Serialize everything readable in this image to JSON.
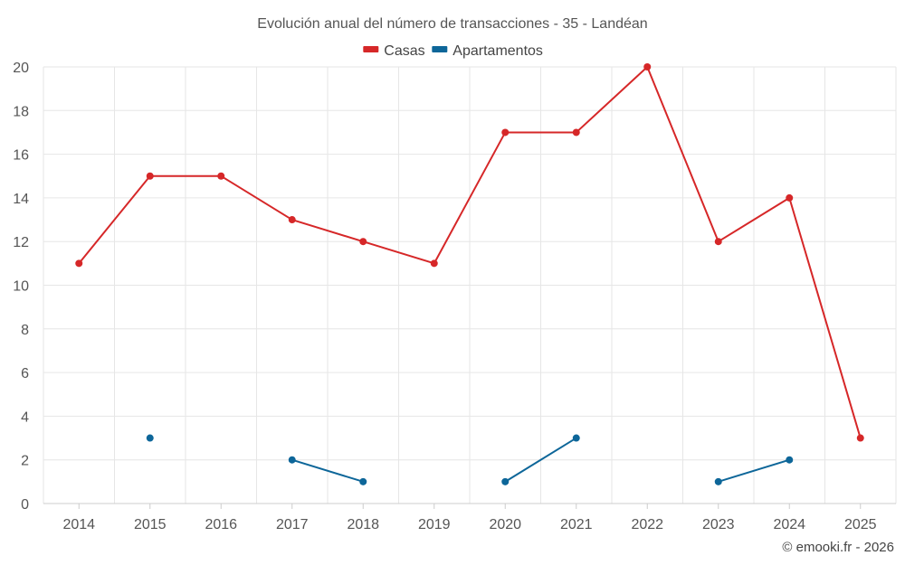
{
  "chart_data": {
    "type": "line",
    "title": "Evolución anual del número de transacciones - 35 - Landéan",
    "categories": [
      "2014",
      "2015",
      "2016",
      "2017",
      "2018",
      "2019",
      "2020",
      "2021",
      "2022",
      "2023",
      "2024",
      "2025"
    ],
    "ylim": [
      0,
      20
    ],
    "yticks": [
      0,
      2,
      4,
      6,
      8,
      10,
      12,
      14,
      16,
      18,
      20
    ],
    "grid": true,
    "legend_position": "top-center",
    "xlabel": "",
    "ylabel": "",
    "series": [
      {
        "name": "Casas",
        "color": "#d62728",
        "values": [
          11,
          15,
          15,
          13,
          12,
          11,
          17,
          17,
          20,
          12,
          14,
          3
        ]
      },
      {
        "name": "Apartamentos",
        "color": "#0d6699",
        "values": [
          null,
          3,
          null,
          2,
          1,
          null,
          1,
          3,
          null,
          1,
          2,
          null
        ]
      }
    ]
  },
  "credit": "© emooki.fr - 2026"
}
